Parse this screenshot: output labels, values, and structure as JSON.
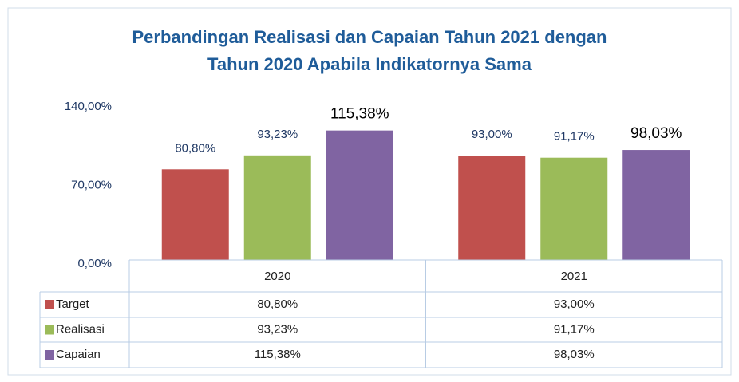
{
  "chart_data": {
    "type": "bar",
    "title": [
      "Perbandingan Realisasi dan Capaian Tahun 2021 dengan",
      "Tahun 2020 Apabila Indikatornya Sama"
    ],
    "categories": [
      "2020",
      "2021"
    ],
    "series": [
      {
        "name": "Target",
        "color": "#c0504d",
        "values": [
          80.8,
          93.0
        ],
        "value_labels": [
          "80,80%",
          "93,00%"
        ]
      },
      {
        "name": "Realisasi",
        "color": "#9bbb59",
        "values": [
          93.23,
          91.17
        ],
        "value_labels": [
          "93,23%",
          "91,17%"
        ]
      },
      {
        "name": "Capaian",
        "color": "#8064a2",
        "values": [
          115.38,
          98.03
        ],
        "value_labels": [
          "115,38%",
          "98,03%"
        ]
      }
    ],
    "ylim": [
      0,
      140
    ],
    "yticks": [
      {
        "value": 0,
        "label": "0,00%"
      },
      {
        "value": 70,
        "label": "70,00%"
      },
      {
        "value": 140,
        "label": "140,00%"
      }
    ],
    "grid": false,
    "data_table": true
  }
}
